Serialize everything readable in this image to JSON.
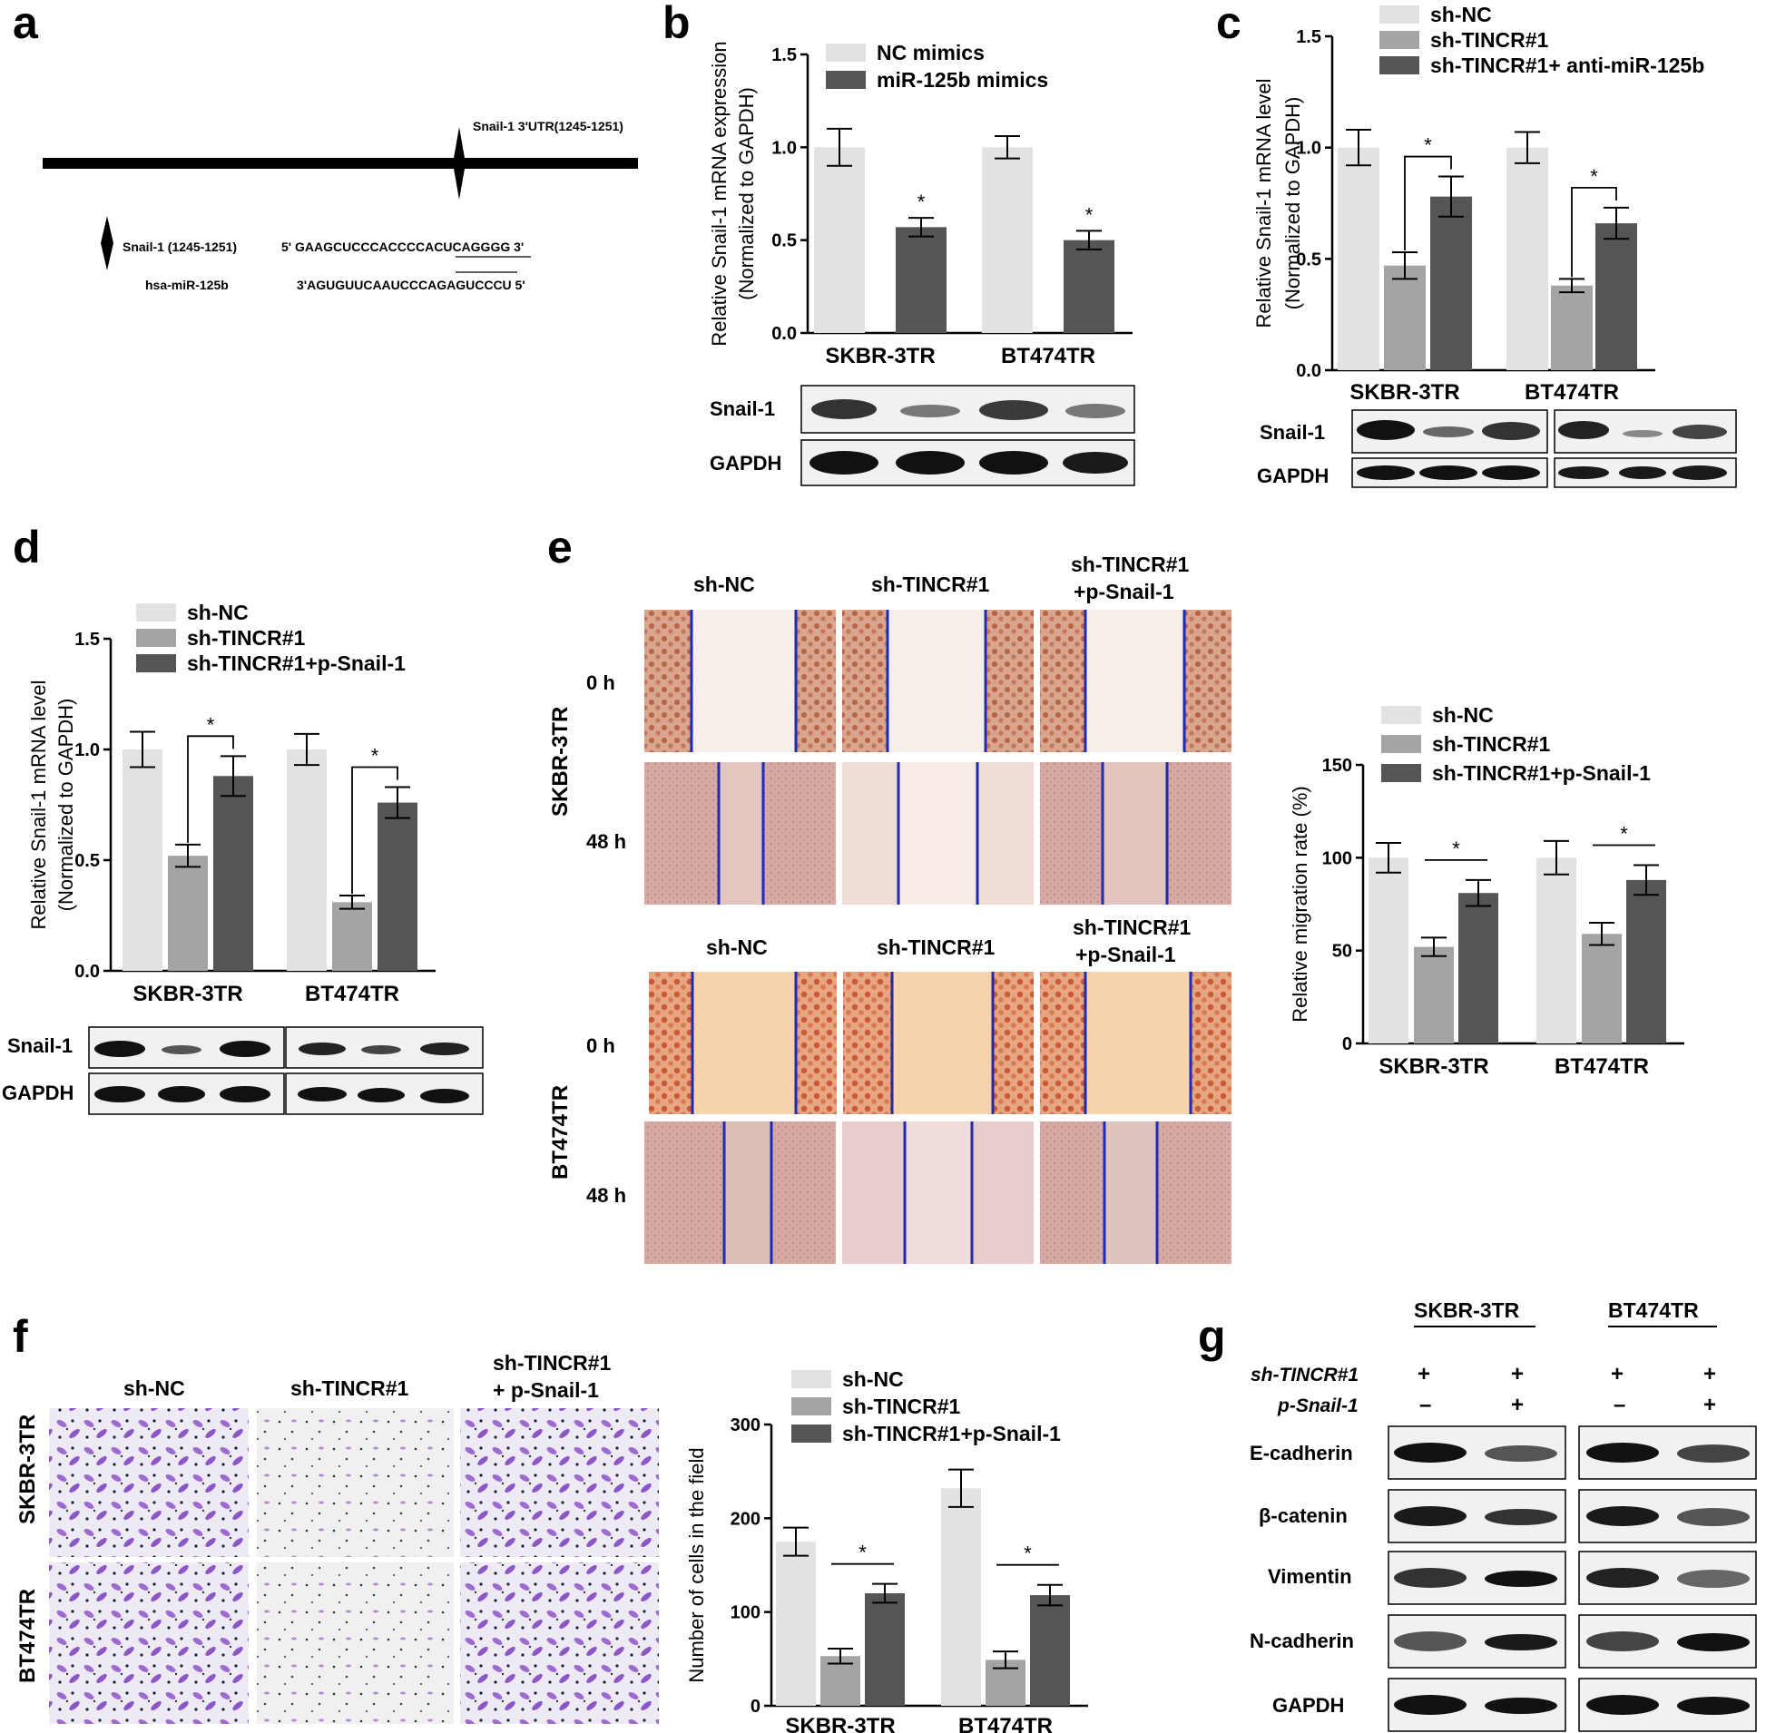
{
  "colors": {
    "light": "#e2e2e2",
    "mid": "#a4a4a4",
    "dark": "#555555",
    "ink": "#000000",
    "line_blue": "#1f2bb0",
    "crystal": "#7e3fb6"
  },
  "panel_labels": {
    "a": "a",
    "b": "b",
    "c": "c",
    "d": "d",
    "e": "e",
    "f": "f",
    "g": "g"
  },
  "panel_a": {
    "utr_label": "Snail-1 3'UTR(1245-1251)",
    "snail_label": "Snail-1 (1245-1251)",
    "mir_label": "hsa-miR-125b",
    "seq_top": "5' GAAGCUCCCACCCCACUCAGGGG  3'",
    "seq_bottom": "3'AGUGUUCAAUCCCAGAGUCCCU  5'"
  },
  "chart_data": [
    {
      "panel": "b",
      "type": "bar",
      "categories": [
        "SKBR-3TR",
        "BT474TR"
      ],
      "ylabel_line1": "Relative Snail-1 mRNA expression",
      "ylabel_line2": "(Normalized to GAPDH)",
      "ylim": [
        0,
        1.5
      ],
      "yticks": [
        "0.0",
        "0.5",
        "1.0",
        "1.5"
      ],
      "legend": "top-right",
      "series": [
        {
          "name": "NC mimics",
          "values": [
            1.0,
            1.0
          ],
          "errors": [
            0.1,
            0.06
          ]
        },
        {
          "name": "miR-125b mimics",
          "values": [
            0.57,
            0.5
          ],
          "errors": [
            0.05,
            0.05
          ]
        }
      ],
      "annotations": [
        "*",
        "*"
      ]
    },
    {
      "panel": "c",
      "type": "bar",
      "categories": [
        "SKBR-3TR",
        "BT474TR"
      ],
      "ylabel_line1": "Relative Snail-1 mRNA level",
      "ylabel_line2": "(Normalized to GAPDH)",
      "ylim": [
        0,
        1.5
      ],
      "yticks": [
        "0.0",
        "0.5",
        "1.0",
        "1.5"
      ],
      "legend": "top-right",
      "series": [
        {
          "name": "sh-NC",
          "values": [
            1.0,
            1.0
          ],
          "errors": [
            0.08,
            0.07
          ]
        },
        {
          "name": "sh-TINCR#1",
          "values": [
            0.47,
            0.38
          ],
          "errors": [
            0.06,
            0.03
          ]
        },
        {
          "name": "sh-TINCR#1+ anti-miR-125b",
          "values": [
            0.78,
            0.66
          ],
          "errors": [
            0.09,
            0.07
          ]
        }
      ],
      "annotations": [
        "*",
        "*"
      ]
    },
    {
      "panel": "d",
      "type": "bar",
      "categories": [
        "SKBR-3TR",
        "BT474TR"
      ],
      "ylabel_line1": "Relative Snail-1 mRNA level",
      "ylabel_line2": "(Normalized to GAPDH)",
      "ylim": [
        0,
        1.5
      ],
      "yticks": [
        "0.0",
        "0.5",
        "1.0",
        "1.5"
      ],
      "legend": "top",
      "series": [
        {
          "name": "sh-NC",
          "values": [
            1.0,
            1.0
          ],
          "errors": [
            0.08,
            0.07
          ]
        },
        {
          "name": "sh-TINCR#1",
          "values": [
            0.52,
            0.31
          ],
          "errors": [
            0.05,
            0.03
          ]
        },
        {
          "name": "sh-TINCR#1+p-Snail-1",
          "values": [
            0.88,
            0.76
          ],
          "errors": [
            0.09,
            0.07
          ]
        }
      ],
      "annotations": [
        "*",
        "*"
      ]
    },
    {
      "panel": "e",
      "type": "bar",
      "categories": [
        "SKBR-3TR",
        "BT474TR"
      ],
      "ylabel_line1": "Relative migration rate (%)",
      "ylabel_line2": "",
      "ylim": [
        0,
        150
      ],
      "yticks": [
        "0",
        "50",
        "100",
        "150"
      ],
      "legend": "top",
      "series": [
        {
          "name": "sh-NC",
          "values": [
            100,
            100
          ],
          "errors": [
            8,
            9
          ]
        },
        {
          "name": "sh-TINCR#1",
          "values": [
            52,
            59
          ],
          "errors": [
            5,
            6
          ]
        },
        {
          "name": "sh-TINCR#1+p-Snail-1",
          "values": [
            81,
            88
          ],
          "errors": [
            7,
            8
          ]
        }
      ],
      "annotations": [
        "*",
        "*"
      ]
    },
    {
      "panel": "f",
      "type": "bar",
      "categories": [
        "SKBR-3TR",
        "BT474TR"
      ],
      "ylabel_line1": "Number of cells in the field",
      "ylabel_line2": "",
      "ylim": [
        0,
        300
      ],
      "yticks": [
        "0",
        "100",
        "200",
        "300"
      ],
      "legend": "top",
      "series": [
        {
          "name": "sh-NC",
          "values": [
            175,
            232
          ],
          "errors": [
            15,
            20
          ]
        },
        {
          "name": "sh-TINCR#1",
          "values": [
            53,
            49
          ],
          "errors": [
            8,
            9
          ]
        },
        {
          "name": "sh-TINCR#1+p-Snail-1",
          "values": [
            120,
            118
          ],
          "errors": [
            10,
            11
          ]
        }
      ],
      "annotations": [
        "*",
        "*"
      ]
    }
  ],
  "blots": {
    "snail": "Snail-1",
    "gapdh": "GAPDH",
    "e_cadherin": "E-cadherin",
    "b_catenin": "β-catenin",
    "vimentin": "Vimentin",
    "n_cadherin": "N-cadherin"
  },
  "panel_e": {
    "cols": [
      "sh-NC",
      "sh-TINCR#1",
      "sh-TINCR#1",
      "+p-Snail-1"
    ],
    "time_0": "0 h",
    "time_48": "48 h",
    "cell_top": "SKBR-3TR",
    "cell_bottom": "BT474TR"
  },
  "panel_f": {
    "cols": [
      "sh-NC",
      "sh-TINCR#1",
      "sh-TINCR#1",
      "+ p-Snail-1"
    ],
    "row_top": "SKBR-3TR",
    "row_bottom": "BT474TR"
  },
  "panel_g": {
    "group1": "SKBR-3TR",
    "group2": "BT474TR",
    "row1_label": "sh-TINCR#1",
    "row2_label": "p-Snail-1",
    "plus": "+",
    "minus": "–"
  }
}
